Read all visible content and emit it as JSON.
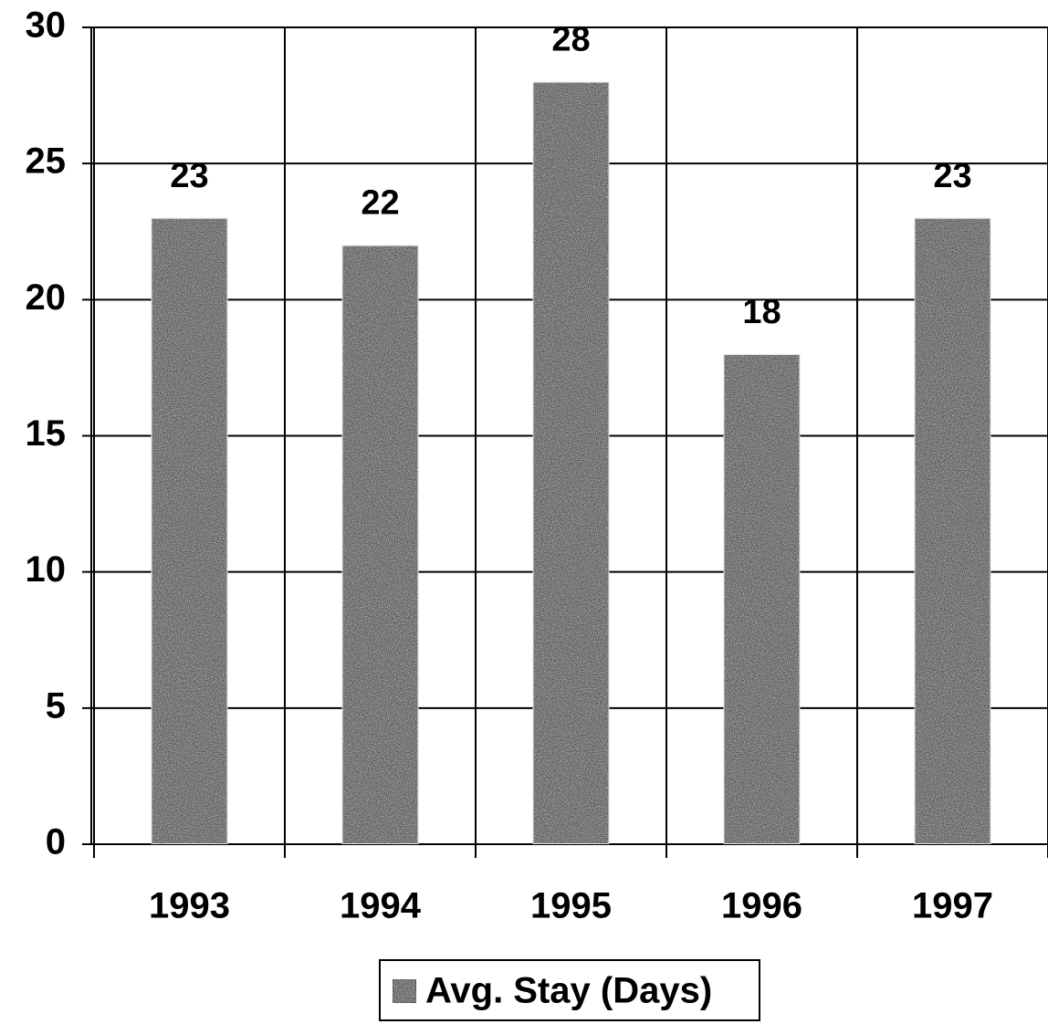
{
  "chart_data": {
    "type": "bar",
    "categories": [
      "1993",
      "1994",
      "1995",
      "1996",
      "1997"
    ],
    "series": [
      {
        "name": "Avg. Stay (Days)",
        "color": "#5c5c5c",
        "values": [
          23,
          22,
          28,
          18,
          23
        ]
      }
    ],
    "ylim": [
      0,
      30
    ],
    "yticks": [
      0,
      5,
      10,
      15,
      20,
      25,
      30
    ],
    "grid": true,
    "legend": "bottom"
  }
}
